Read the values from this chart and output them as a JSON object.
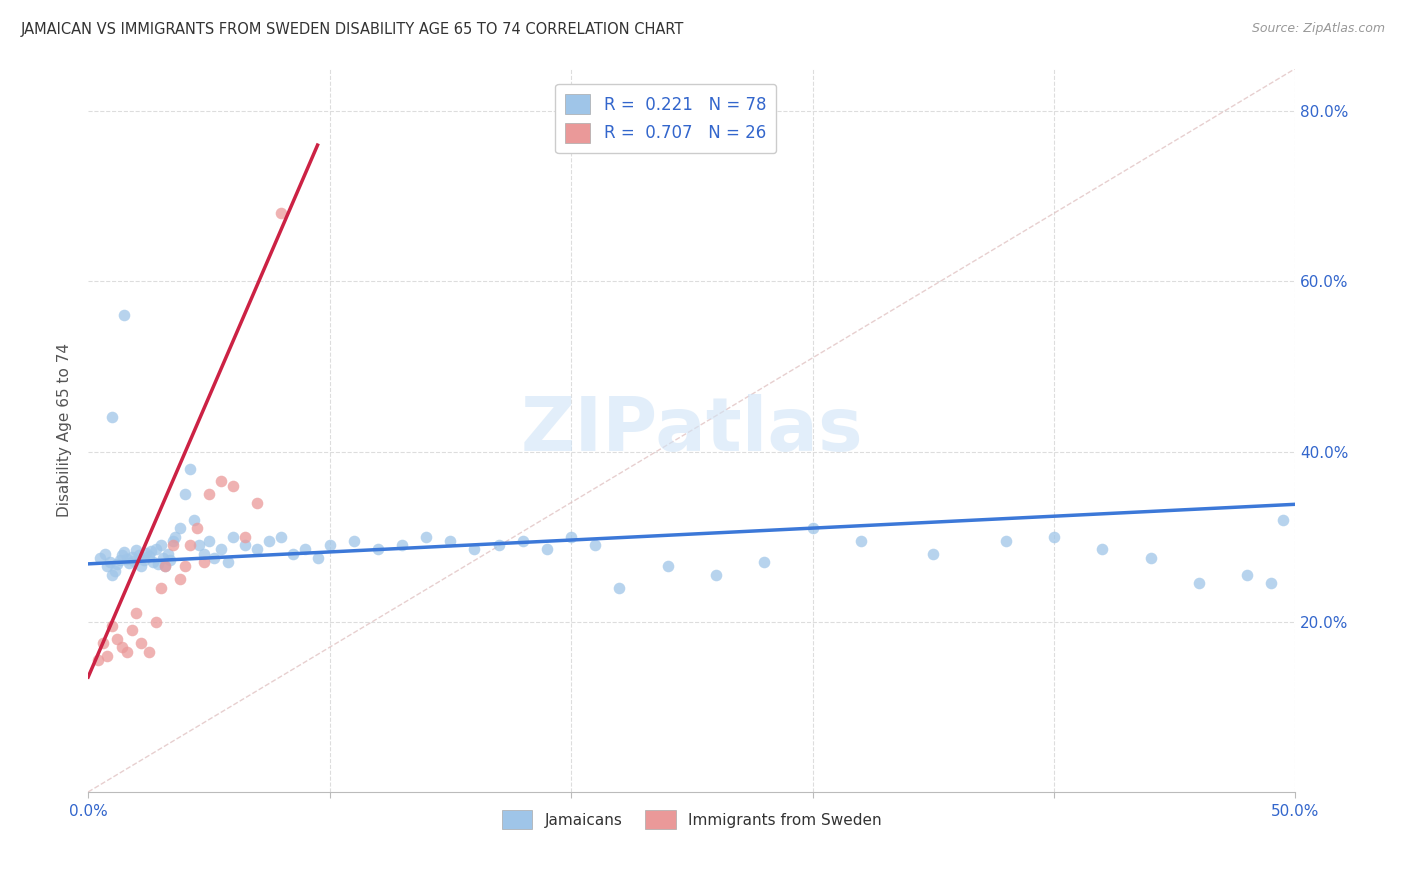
{
  "title": "JAMAICAN VS IMMIGRANTS FROM SWEDEN DISABILITY AGE 65 TO 74 CORRELATION CHART",
  "source": "Source: ZipAtlas.com",
  "ylabel": "Disability Age 65 to 74",
  "xlim": [
    0.0,
    0.5
  ],
  "ylim": [
    0.0,
    0.85
  ],
  "yticks": [
    0.2,
    0.4,
    0.6,
    0.8
  ],
  "ytick_labels": [
    "20.0%",
    "40.0%",
    "60.0%",
    "80.0%"
  ],
  "watermark": "ZIPatlas",
  "legend_label1": "Jamaicans",
  "legend_label2": "Immigrants from Sweden",
  "r1": 0.221,
  "n1": 78,
  "r2": 0.707,
  "n2": 26,
  "scatter_color1": "#9fc5e8",
  "scatter_color2": "#ea9999",
  "line_color1": "#3c78d8",
  "line_color2": "#cc2244",
  "diag_color": "#ddbbbb",
  "scatter_alpha": 0.75,
  "scatter_size": 70,
  "jamaicans_x": [
    0.005,
    0.007,
    0.008,
    0.009,
    0.01,
    0.011,
    0.012,
    0.013,
    0.014,
    0.015,
    0.016,
    0.017,
    0.018,
    0.019,
    0.02,
    0.021,
    0.022,
    0.023,
    0.024,
    0.025,
    0.026,
    0.027,
    0.028,
    0.029,
    0.03,
    0.031,
    0.032,
    0.033,
    0.034,
    0.035,
    0.036,
    0.038,
    0.04,
    0.042,
    0.044,
    0.046,
    0.048,
    0.05,
    0.052,
    0.055,
    0.058,
    0.06,
    0.065,
    0.07,
    0.075,
    0.08,
    0.085,
    0.09,
    0.095,
    0.1,
    0.11,
    0.12,
    0.13,
    0.14,
    0.15,
    0.16,
    0.17,
    0.18,
    0.19,
    0.2,
    0.21,
    0.22,
    0.24,
    0.26,
    0.28,
    0.3,
    0.32,
    0.35,
    0.38,
    0.4,
    0.42,
    0.44,
    0.46,
    0.48,
    0.495,
    0.49,
    0.01,
    0.015
  ],
  "jamaicans_y": [
    0.275,
    0.28,
    0.265,
    0.27,
    0.255,
    0.26,
    0.268,
    0.272,
    0.278,
    0.282,
    0.274,
    0.269,
    0.276,
    0.271,
    0.284,
    0.279,
    0.266,
    0.273,
    0.281,
    0.277,
    0.283,
    0.27,
    0.285,
    0.268,
    0.29,
    0.275,
    0.265,
    0.28,
    0.272,
    0.295,
    0.3,
    0.31,
    0.35,
    0.38,
    0.32,
    0.29,
    0.28,
    0.295,
    0.275,
    0.285,
    0.27,
    0.3,
    0.29,
    0.285,
    0.295,
    0.3,
    0.28,
    0.285,
    0.275,
    0.29,
    0.295,
    0.285,
    0.29,
    0.3,
    0.295,
    0.285,
    0.29,
    0.295,
    0.285,
    0.3,
    0.29,
    0.24,
    0.265,
    0.255,
    0.27,
    0.31,
    0.295,
    0.28,
    0.295,
    0.3,
    0.285,
    0.275,
    0.245,
    0.255,
    0.32,
    0.245,
    0.44,
    0.56
  ],
  "sweden_x": [
    0.004,
    0.006,
    0.008,
    0.01,
    0.012,
    0.014,
    0.016,
    0.018,
    0.02,
    0.022,
    0.025,
    0.028,
    0.03,
    0.032,
    0.035,
    0.038,
    0.04,
    0.042,
    0.045,
    0.048,
    0.05,
    0.055,
    0.06,
    0.065,
    0.07,
    0.08
  ],
  "sweden_y": [
    0.155,
    0.175,
    0.16,
    0.195,
    0.18,
    0.17,
    0.165,
    0.19,
    0.21,
    0.175,
    0.165,
    0.2,
    0.24,
    0.265,
    0.29,
    0.25,
    0.265,
    0.29,
    0.31,
    0.27,
    0.35,
    0.365,
    0.36,
    0.3,
    0.34,
    0.68
  ],
  "blue_line_x": [
    0.0,
    0.5
  ],
  "blue_line_y": [
    0.268,
    0.338
  ],
  "pink_line_x": [
    0.0,
    0.095
  ],
  "pink_line_y": [
    0.135,
    0.76
  ],
  "diag_line_x": [
    0.0,
    0.5
  ],
  "diag_line_y": [
    0.0,
    0.85
  ]
}
